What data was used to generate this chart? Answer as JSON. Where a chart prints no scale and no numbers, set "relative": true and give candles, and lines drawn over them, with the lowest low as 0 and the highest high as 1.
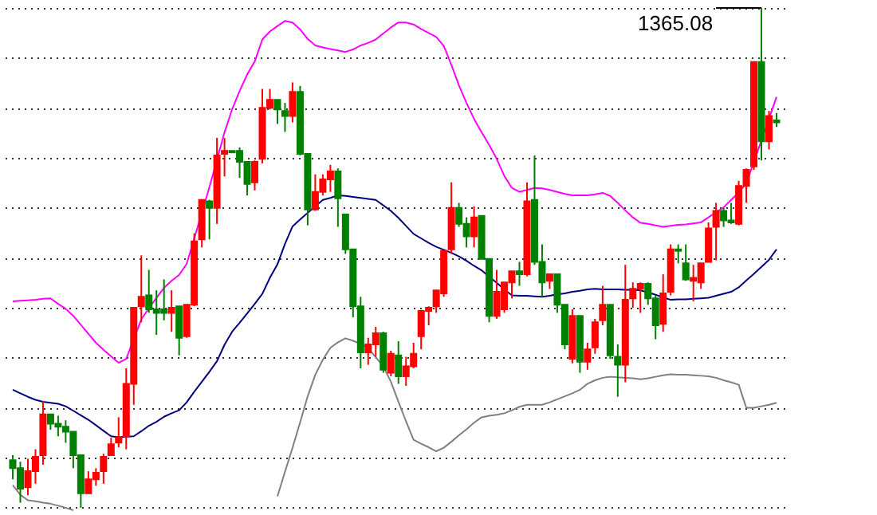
{
  "chart_data": {
    "type": "candlestick",
    "relative": true,
    "grid": "y",
    "categories": [
      null,
      null,
      null,
      null,
      null,
      null,
      null,
      null,
      null,
      null,
      null,
      null,
      null,
      null,
      null,
      null,
      null,
      null,
      null,
      null,
      null,
      null,
      null,
      null,
      null,
      null,
      null,
      null,
      null,
      null,
      null,
      null,
      null,
      null,
      null,
      null,
      null,
      null,
      null,
      null,
      null,
      null,
      null,
      null,
      null,
      null,
      null,
      null,
      null,
      null,
      null,
      null,
      null,
      null,
      null,
      null,
      null,
      null,
      null,
      null,
      null,
      null,
      null,
      null,
      null,
      null,
      null,
      null,
      null,
      null,
      null,
      null,
      null,
      null,
      null,
      null,
      null,
      null,
      null,
      null,
      null,
      null,
      null,
      null,
      null,
      null,
      null,
      null,
      null,
      null,
      null,
      null,
      null,
      null,
      null,
      null,
      null,
      null,
      null,
      null,
      null,
      null
    ],
    "ohlc": [
      [
        0.095,
        0.105,
        0.057,
        0.079
      ],
      [
        0.079,
        0.092,
        0.01,
        0.038
      ],
      [
        0.041,
        0.098,
        0.025,
        0.073
      ],
      [
        0.073,
        0.117,
        0.048,
        0.102
      ],
      [
        0.105,
        0.213,
        0.086,
        0.187
      ],
      [
        0.187,
        0.187,
        0.156,
        0.168
      ],
      [
        0.168,
        0.184,
        0.143,
        0.162
      ],
      [
        0.162,
        0.175,
        0.13,
        0.152
      ],
      [
        0.152,
        0.152,
        0.079,
        0.105
      ],
      [
        0.105,
        0.105,
        0,
        0.029
      ],
      [
        0.029,
        0.073,
        0.029,
        0.057
      ],
      [
        0.057,
        0.079,
        0.044,
        0.07
      ],
      [
        0.073,
        0.108,
        0.048,
        0.102
      ],
      [
        0.105,
        0.14,
        0.105,
        0.127
      ],
      [
        0.13,
        0.181,
        0.121,
        0.14
      ],
      [
        0.143,
        0.279,
        0.117,
        0.248
      ],
      [
        0.248,
        0.4,
        0.206,
        0.4
      ],
      [
        0.403,
        0.505,
        0.371,
        0.422
      ],
      [
        0.425,
        0.476,
        0.39,
        0.397
      ],
      [
        0.397,
        0.435,
        0.346,
        0.39
      ],
      [
        0.397,
        0.457,
        0.375,
        0.39
      ],
      [
        0.39,
        0.435,
        0.352,
        0.4
      ],
      [
        0.403,
        0.403,
        0.305,
        0.34
      ],
      [
        0.343,
        0.406,
        0.34,
        0.406
      ],
      [
        0.406,
        0.549,
        0.403,
        0.533
      ],
      [
        0.537,
        0.616,
        0.521,
        0.616
      ],
      [
        0.613,
        0.616,
        0.537,
        0.6
      ],
      [
        0.6,
        0.74,
        0.568,
        0.705
      ],
      [
        0.708,
        0.74,
        0.663,
        0.714
      ],
      [
        0.714,
        0.714,
        0.711,
        0.711
      ],
      [
        0.714,
        0.721,
        0.66,
        0.692
      ],
      [
        0.692,
        0.692,
        0.625,
        0.648
      ],
      [
        0.651,
        0.695,
        0.635,
        0.692
      ],
      [
        0.698,
        0.838,
        0.689,
        0.8
      ],
      [
        0.8,
        0.838,
        0.797,
        0.816
      ],
      [
        0.816,
        0.816,
        0.768,
        0.797
      ],
      [
        0.794,
        0.81,
        0.752,
        0.784
      ],
      [
        0.784,
        0.851,
        0.771,
        0.832
      ],
      [
        0.832,
        0.844,
        0.705,
        0.708
      ],
      [
        0.708,
        0.708,
        0.565,
        0.597
      ],
      [
        0.597,
        0.667,
        0.594,
        0.632
      ],
      [
        0.632,
        0.667,
        0.625,
        0.657
      ],
      [
        0.657,
        0.686,
        0.632,
        0.673
      ],
      [
        0.673,
        0.679,
        0.562,
        0.619
      ],
      [
        0.587,
        0.587,
        0.508,
        0.517
      ],
      [
        0.517,
        0.517,
        0.381,
        0.403
      ],
      [
        0.403,
        0.422,
        0.279,
        0.311
      ],
      [
        0.311,
        0.34,
        0.286,
        0.327
      ],
      [
        0.327,
        0.362,
        0.302,
        0.349
      ],
      [
        0.349,
        0.352,
        0.27,
        0.276
      ],
      [
        0.27,
        0.314,
        0.263,
        0.308
      ],
      [
        0.305,
        0.333,
        0.248,
        0.263
      ],
      [
        0.263,
        0.302,
        0.244,
        0.283
      ],
      [
        0.283,
        0.33,
        0.279,
        0.308
      ],
      [
        0.343,
        0.394,
        0.317,
        0.394
      ],
      [
        0.394,
        0.403,
        0.365,
        0.4
      ],
      [
        0.403,
        0.435,
        0.39,
        0.435
      ],
      [
        0.429,
        0.514,
        0.422,
        0.514
      ],
      [
        0.517,
        0.651,
        0.508,
        0.6
      ],
      [
        0.6,
        0.61,
        0.562,
        0.568
      ],
      [
        0.568,
        0.581,
        0.521,
        0.543
      ],
      [
        0.543,
        0.603,
        0.521,
        0.581
      ],
      [
        0.584,
        0.584,
        0.498,
        0.498
      ],
      [
        0.498,
        0.498,
        0.371,
        0.384
      ],
      [
        0.384,
        0.476,
        0.378,
        0.432
      ],
      [
        0.397,
        0.451,
        0.39,
        0.451
      ],
      [
        0.451,
        0.473,
        0.419,
        0.473
      ],
      [
        0.473,
        0.492,
        0.444,
        0.467
      ],
      [
        0.467,
        0.651,
        0.463,
        0.613
      ],
      [
        0.616,
        0.705,
        0.486,
        0.492
      ],
      [
        0.492,
        0.527,
        0.422,
        0.451
      ],
      [
        0.454,
        0.467,
        0.438,
        0.467
      ],
      [
        0.467,
        0.467,
        0.39,
        0.406
      ],
      [
        0.406,
        0.406,
        0.317,
        0.327
      ],
      [
        0.298,
        0.397,
        0.289,
        0.384
      ],
      [
        0.384,
        0.384,
        0.27,
        0.292
      ],
      [
        0.292,
        0.33,
        0.276,
        0.317
      ],
      [
        0.321,
        0.378,
        0.308,
        0.371
      ],
      [
        0.375,
        0.444,
        0.365,
        0.406
      ],
      [
        0.406,
        0.406,
        0.298,
        0.305
      ],
      [
        0.302,
        0.327,
        0.222,
        0.286
      ],
      [
        0.286,
        0.486,
        0.251,
        0.416
      ],
      [
        0.419,
        0.451,
        0.4,
        0.438
      ],
      [
        0.438,
        0.451,
        0.39,
        0.448
      ],
      [
        0.448,
        0.451,
        0.406,
        0.419
      ],
      [
        0.419,
        0.425,
        0.337,
        0.365
      ],
      [
        0.368,
        0.467,
        0.352,
        0.429
      ],
      [
        0.432,
        0.527,
        0.425,
        0.517
      ],
      [
        0.517,
        0.527,
        0.489,
        0.514
      ],
      [
        0.489,
        0.527,
        0.454,
        0.457
      ],
      [
        0.454,
        0.486,
        0.413,
        0.46
      ],
      [
        0.451,
        0.489,
        0.438,
        0.489
      ],
      [
        0.492,
        0.571,
        0.492,
        0.559
      ],
      [
        0.562,
        0.61,
        0.495,
        0.594
      ],
      [
        0.594,
        0.6,
        0.562,
        0.575
      ],
      [
        0.575,
        0.61,
        0.568,
        0.571
      ],
      [
        0.568,
        0.654,
        0.565,
        0.644
      ],
      [
        0.644,
        0.679,
        0.61,
        0.676
      ],
      [
        0.683,
        0.892,
        0.676,
        0.892
      ],
      [
        0.892,
        1,
        0.695,
        0.733
      ],
      [
        0.733,
        0.794,
        0.717,
        0.784
      ],
      [
        0.775,
        0.79,
        0.762,
        0.771
      ]
    ],
    "colors": [
      "#008000",
      "#008000",
      "#ff0000",
      "#ff0000",
      "#ff0000",
      "#008000",
      "#008000",
      "#008000",
      "#008000",
      "#008000",
      "#ff0000",
      "#ff0000",
      "#ff0000",
      "#ff0000",
      "#ff0000",
      "#ff0000",
      "#ff0000",
      "#ff0000",
      "#008000",
      "#008000",
      "#008000",
      "#ff0000",
      "#008000",
      "#ff0000",
      "#ff0000",
      "#ff0000",
      "#008000",
      "#ff0000",
      "#ff0000",
      "#008000",
      "#008000",
      "#008000",
      "#ff0000",
      "#ff0000",
      "#ff0000",
      "#008000",
      "#008000",
      "#ff0000",
      "#008000",
      "#008000",
      "#ff0000",
      "#ff0000",
      "#ff0000",
      "#008000",
      "#008000",
      "#008000",
      "#008000",
      "#ff0000",
      "#ff0000",
      "#008000",
      "#ff0000",
      "#008000",
      "#ff0000",
      "#ff0000",
      "#ff0000",
      "#ff0000",
      "#ff0000",
      "#ff0000",
      "#ff0000",
      "#008000",
      "#008000",
      "#ff0000",
      "#008000",
      "#008000",
      "#ff0000",
      "#ff0000",
      "#ff0000",
      "#008000",
      "#ff0000",
      "#008000",
      "#008000",
      "#ff0000",
      "#008000",
      "#008000",
      "#ff0000",
      "#008000",
      "#ff0000",
      "#ff0000",
      "#ff0000",
      "#008000",
      "#008000",
      "#ff0000",
      "#ff0000",
      "#ff0000",
      "#008000",
      "#008000",
      "#ff0000",
      "#ff0000",
      "#008000",
      "#008000",
      "#ff0000",
      "#ff0000",
      "#ff0000",
      "#ff0000",
      "#008000",
      "#008000",
      "#ff0000",
      "#ff0000",
      "#ff0000",
      "#008000",
      "#ff0000",
      "#008000"
    ],
    "series": [
      {
        "type": "line",
        "color": "#ff00ff",
        "values": [
          0.413,
          0.414,
          0.415,
          0.416,
          0.418,
          0.419,
          0.408,
          0.398,
          0.384,
          0.366,
          0.348,
          0.33,
          0.316,
          0.303,
          0.29,
          0.298,
          null,
          0.377,
          0.399,
          0.42,
          0.44,
          0.454,
          0.466,
          0.488,
          null,
          null,
          0.641,
          0.696,
          0.751,
          0.797,
          0.834,
          0.867,
          0.893,
          0.937,
          0.953,
          0.964,
          0.974,
          0.971,
          0.957,
          0.938,
          0.925,
          0.921,
          0.918,
          0.915,
          0.912,
          0.917,
          0.925,
          0.93,
          0.937,
          0.949,
          0.961,
          0.971,
          0.971,
          0.967,
          0.958,
          0.95,
          0.942,
          0.924,
          0.886,
          0.845,
          0.81,
          0.778,
          0.751,
          0.726,
          0.698,
          0.664,
          0.64,
          0.632,
          0.636,
          0.64,
          0.639,
          0.636,
          0.632,
          0.628,
          0.625,
          0.625,
          0.625,
          0.627,
          0.63,
          0.624,
          0.61,
          0.595,
          0.581,
          0.57,
          0.568,
          0.565,
          0.562,
          0.564,
          0.566,
          0.567,
          0.569,
          0.571,
          0.581,
          0.591,
          0.601,
          0.616,
          0.631,
          0.649,
          null,
          0.735,
          null,
          0.822
        ]
      },
      {
        "type": "line",
        "color": "#000080",
        "values": [
          0.236,
          0.229,
          0.222,
          0.216,
          0.212,
          0.21,
          0.208,
          0.203,
          0.194,
          0.185,
          0.176,
          0.165,
          0.154,
          0.143,
          0.141,
          0.142,
          0.143,
          0.153,
          0.164,
          0.172,
          0.182,
          0.189,
          0.195,
          0.211,
          0.232,
          0.252,
          0.272,
          0.293,
          0.326,
          0.352,
          0.37,
          0.389,
          0.408,
          0.428,
          0.46,
          0.487,
          0.528,
          0.563,
          0.577,
          0.59,
          0.603,
          0.616,
          0.62,
          0.625,
          0.624,
          0.622,
          0.62,
          0.618,
          0.616,
          0.605,
          0.594,
          0.58,
          0.564,
          0.548,
          0.539,
          0.53,
          0.522,
          0.516,
          0.51,
          0.503,
          0.494,
          0.484,
          0.475,
          0.462,
          0.45,
          0.437,
          0.425,
          0.424,
          0.424,
          0.423,
          0.422,
          0.424,
          0.427,
          0.429,
          0.432,
          0.434,
          0.437,
          0.438,
          0.437,
          0.437,
          0.437,
          0.436,
          0.436,
          0.435,
          0.431,
          0.426,
          0.421,
          0.416,
          0.417,
          0.417,
          0.418,
          0.419,
          0.42,
          0.424,
          0.428,
          0.432,
          0.441,
          0.455,
          0.468,
          0.482,
          0.496,
          0.517
        ]
      },
      {
        "type": "line",
        "color": "#808080",
        "values": [
          0.045,
          0.026,
          0.015,
          0.013,
          0.01,
          0.008,
          0.004,
          0.0,
          -0.005,
          null,
          null,
          null,
          null,
          null,
          null,
          null,
          null,
          null,
          null,
          null,
          null,
          null,
          null,
          null,
          null,
          null,
          null,
          null,
          null,
          null,
          null,
          null,
          null,
          null,
          null,
          0.023,
          0.072,
          0.12,
          0.171,
          0.223,
          0.266,
          0.296,
          0.32,
          0.331,
          0.339,
          0.334,
          0.328,
          0.319,
          0.301,
          0.283,
          0.252,
          0.212,
          0.173,
          0.136,
          0.128,
          0.121,
          0.113,
          0.12,
          0.132,
          0.145,
          0.157,
          0.17,
          0.181,
          0.184,
          0.186,
          0.189,
          0.195,
          0.202,
          0.206,
          0.206,
          0.206,
          0.211,
          0.217,
          0.223,
          0.229,
          0.236,
          0.248,
          0.255,
          0.26,
          0.262,
          0.261,
          0.26,
          0.259,
          0.257,
          0.259,
          0.262,
          0.265,
          0.267,
          0.266,
          0.266,
          0.265,
          0.264,
          0.263,
          0.26,
          0.255,
          0.251,
          0.246,
          0.2,
          0.2,
          0.203,
          0.206,
          0.21
        ]
      }
    ],
    "annotations": [
      "1365.08"
    ]
  }
}
